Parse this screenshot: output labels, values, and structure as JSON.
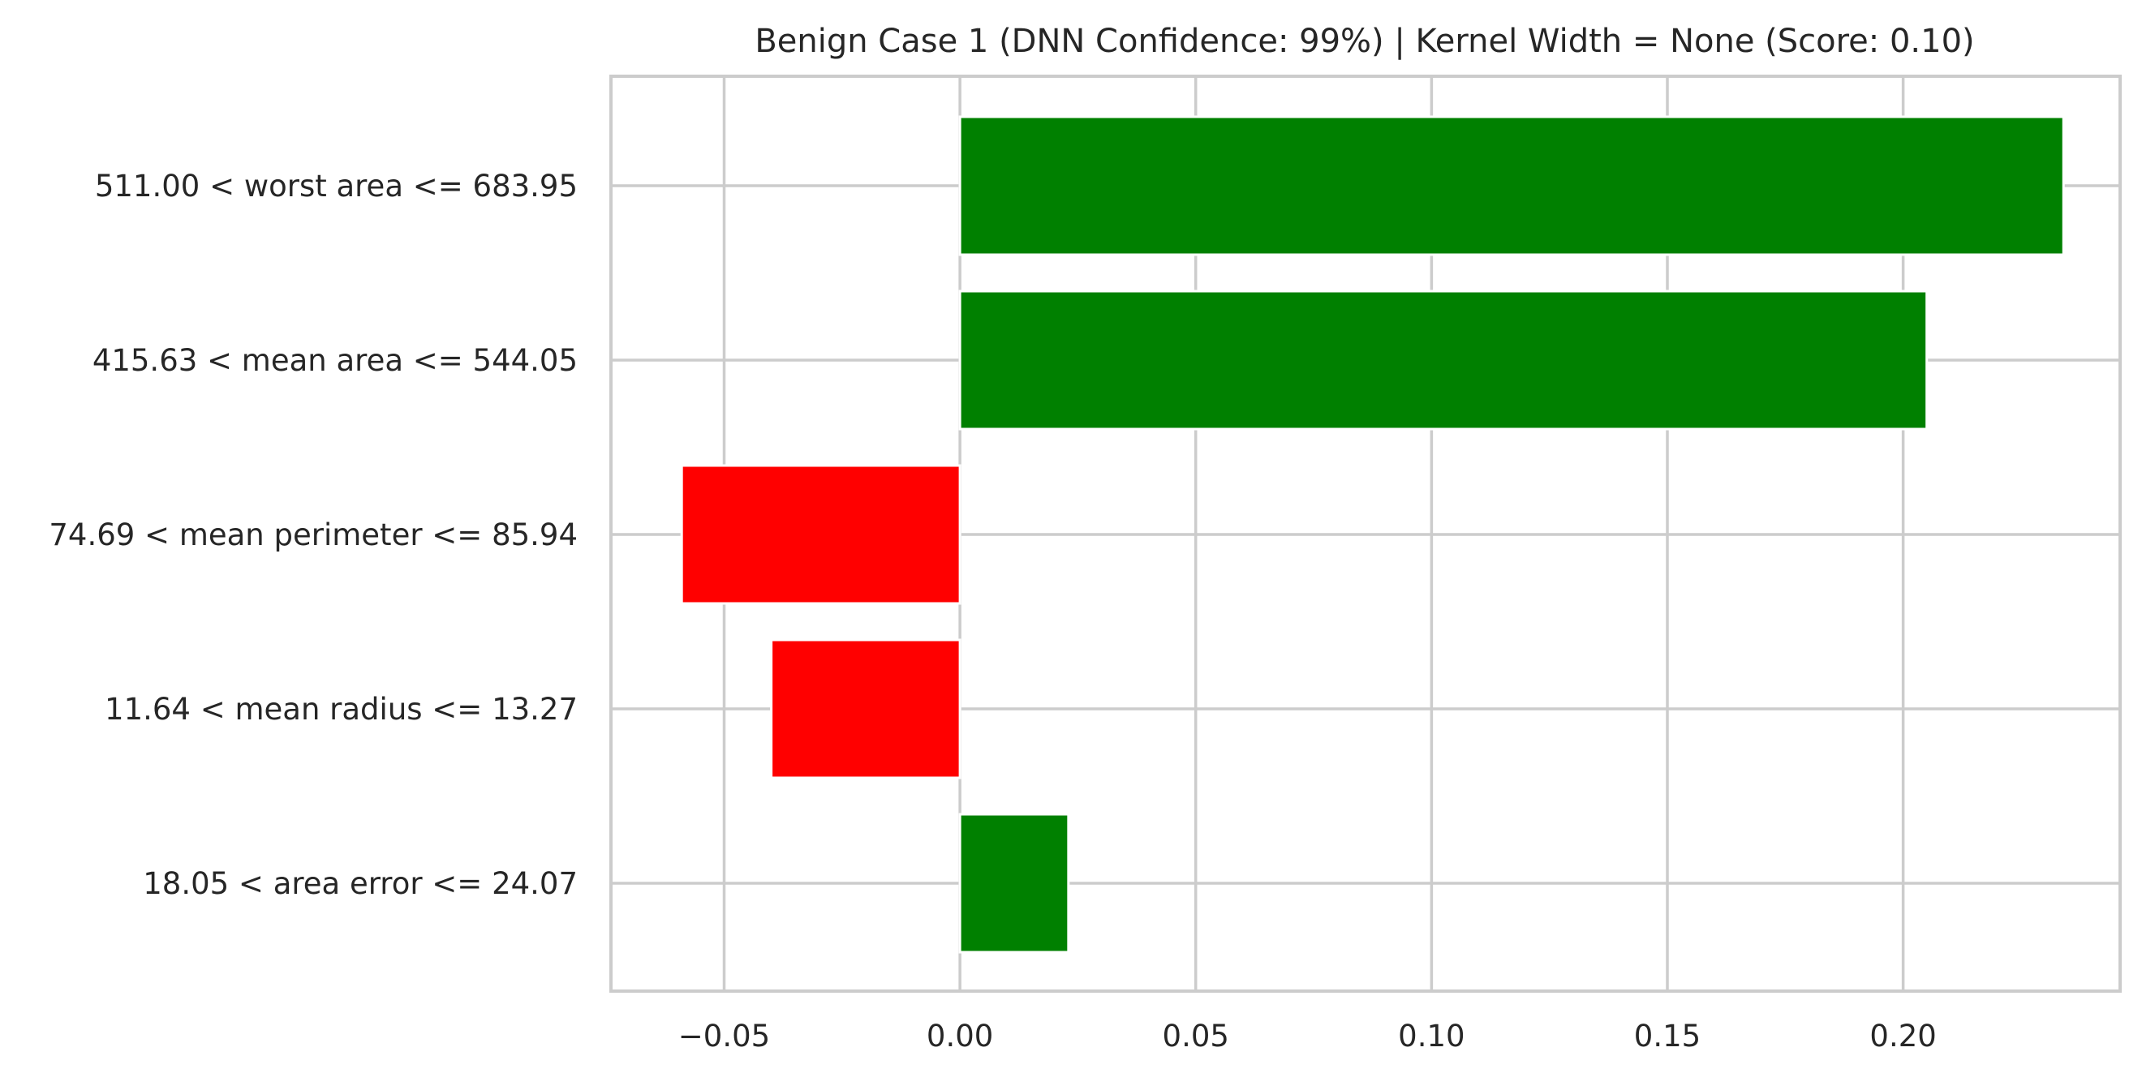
{
  "chart_data": {
    "type": "bar",
    "orientation": "horizontal",
    "title": "Benign Case 1 (DNN Confidence: 99%) | Kernel Width = None (Score: 0.10)",
    "xlabel": "",
    "ylabel": "",
    "categories": [
      "511.00 < worst area <= 683.95",
      "415.63 < mean area <= 544.05",
      "74.69 < mean perimeter <= 85.94",
      "11.64 < mean radius <= 13.27",
      "18.05 < area error <= 24.07"
    ],
    "values": [
      0.234,
      0.205,
      -0.059,
      -0.04,
      0.023
    ],
    "colors": [
      "#008000",
      "#008000",
      "#ff0000",
      "#ff0000",
      "#008000"
    ],
    "positive_color": "#008000",
    "negative_color": "#ff0000",
    "xlim": [
      -0.074,
      0.246
    ],
    "xticks": [
      -0.05,
      0.0,
      0.05,
      0.1,
      0.15,
      0.2
    ],
    "xtick_labels": [
      "−0.05",
      "0.00",
      "0.05",
      "0.10",
      "0.15",
      "0.20"
    ],
    "grid": true
  }
}
